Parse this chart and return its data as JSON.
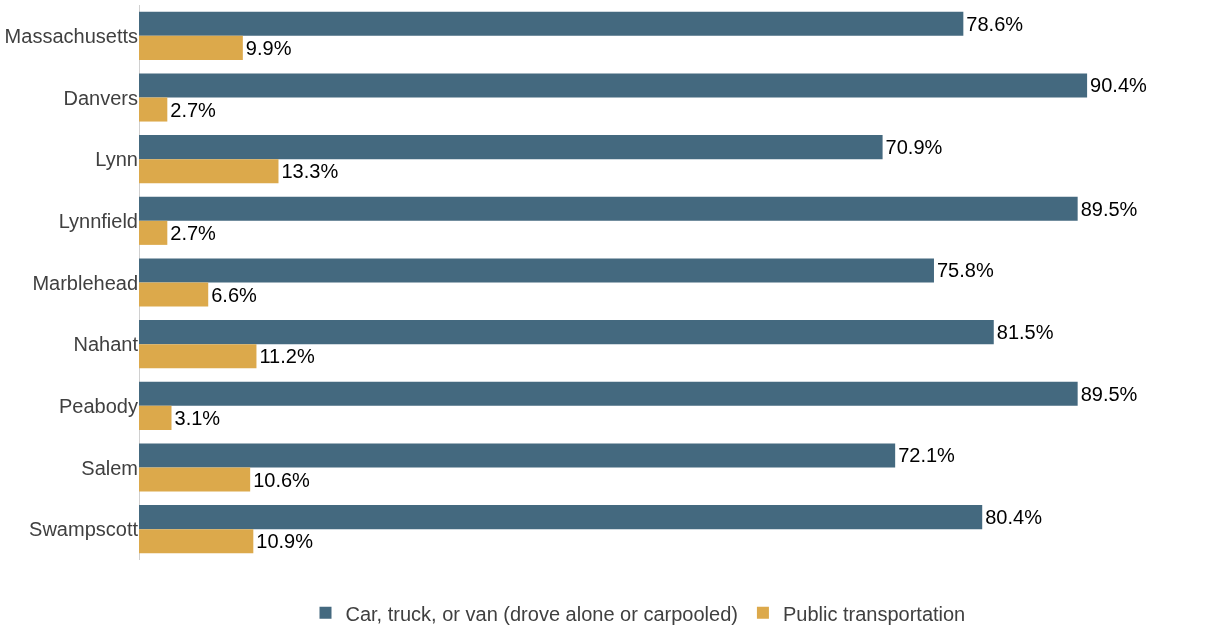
{
  "chart_data": {
    "type": "bar",
    "orientation": "horizontal",
    "categories": [
      "Massachusetts",
      "Danvers",
      "Lynn",
      "Lynnfield",
      "Marblehead",
      "Nahant",
      "Peabody",
      "Salem",
      "Swampscott"
    ],
    "series": [
      {
        "name": "Car, truck, or van (drove alone or carpooled)",
        "color": "#44697f",
        "values": [
          78.6,
          90.4,
          70.9,
          89.5,
          75.8,
          81.5,
          89.5,
          72.1,
          80.4
        ],
        "value_labels": [
          "78.6%",
          "90.4%",
          "70.9%",
          "89.5%",
          "75.8%",
          "81.5%",
          "89.5%",
          "72.1%",
          "80.4%"
        ]
      },
      {
        "name": "Public transportation",
        "color": "#dca94b",
        "values": [
          9.9,
          2.7,
          13.3,
          2.7,
          6.6,
          11.2,
          3.1,
          10.6,
          10.9
        ],
        "value_labels": [
          "9.9%",
          "2.7%",
          "13.3%",
          "2.7%",
          "6.6%",
          "11.2%",
          "3.1%",
          "10.6%",
          "10.9%"
        ]
      }
    ],
    "legend": "bottom"
  }
}
